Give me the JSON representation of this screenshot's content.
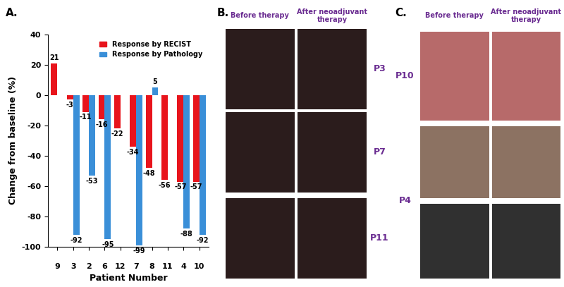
{
  "chart_data": {
    "type": "bar",
    "title": "A.",
    "x_label": "Patient Number",
    "y_label": "Change from baseline (%)",
    "categories": [
      "9",
      "3",
      "2",
      "6",
      "12",
      "7",
      "8",
      "11",
      "4",
      "10"
    ],
    "series": [
      {
        "name": "Response by RECIST",
        "color": "#e8141c",
        "values": [
          21,
          -3,
          -11,
          -16,
          -22,
          -34,
          -48,
          -56,
          -57,
          -57
        ]
      },
      {
        "name": "Response by Pathology",
        "color": "#3a8fd8",
        "values": [
          null,
          -92,
          -53,
          -95,
          null,
          -99,
          5,
          null,
          -88,
          -92
        ]
      }
    ],
    "ylim": [
      -100,
      40
    ],
    "yticks": [
      -100,
      -80,
      -60,
      -40,
      -20,
      0,
      20,
      40
    ],
    "legend": "upper right",
    "data_labels": true
  },
  "panel_b": {
    "label": "B.",
    "columns": [
      "Before therapy",
      "After neoadjuvant\ntherapy"
    ],
    "rows": [
      "P3",
      "P7",
      "P11"
    ]
  },
  "panel_c": {
    "label": "C.",
    "columns": [
      "Before therapy",
      "After neoadjuvant\ntherapy"
    ],
    "rows": [
      "P10",
      "P4"
    ]
  }
}
